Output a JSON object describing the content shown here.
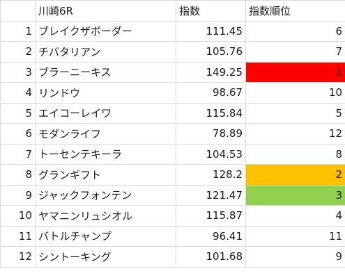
{
  "sheet": {
    "headers": {
      "race": "川崎6R",
      "index": "指数",
      "rank": "指数順位"
    },
    "rank_colors": {
      "1": "#ff0000",
      "2": "#ffc000",
      "3": "#92d050"
    },
    "rows": [
      {
        "no": "1",
        "name": "ブレイクザボーダー",
        "index": "111.45",
        "rank": "6"
      },
      {
        "no": "2",
        "name": "チバタリアン",
        "index": "105.76",
        "rank": "7"
      },
      {
        "no": "3",
        "name": "ブラーニーキス",
        "index": "149.25",
        "rank": "1"
      },
      {
        "no": "4",
        "name": "リンドウ",
        "index": "98.67",
        "rank": "10"
      },
      {
        "no": "5",
        "name": "エイコーレイワ",
        "index": "115.84",
        "rank": "5"
      },
      {
        "no": "6",
        "name": "モダンライフ",
        "index": "78.89",
        "rank": "12"
      },
      {
        "no": "7",
        "name": "トーセンテキーラ",
        "index": "104.53",
        "rank": "8"
      },
      {
        "no": "8",
        "name": "グランギフト",
        "index": "128.2",
        "rank": "2"
      },
      {
        "no": "9",
        "name": "ジャックフォンテン",
        "index": "121.47",
        "rank": "3"
      },
      {
        "no": "10",
        "name": "ヤマニンリュシオル",
        "index": "115.87",
        "rank": "4"
      },
      {
        "no": "11",
        "name": "バトルチャンプ",
        "index": "96.41",
        "rank": "11"
      },
      {
        "no": "12",
        "name": "シントーキング",
        "index": "101.68",
        "rank": "9"
      }
    ]
  }
}
